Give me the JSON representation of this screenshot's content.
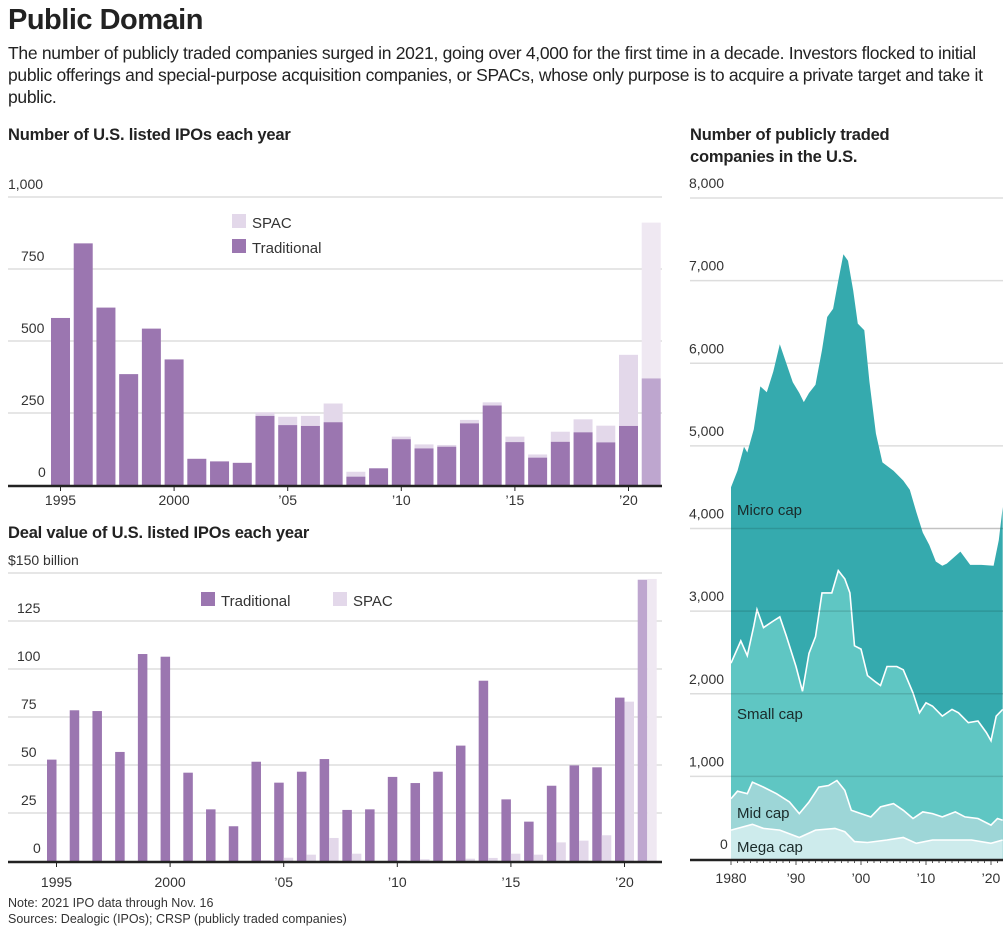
{
  "header": {
    "title": "Public Domain",
    "dek": "The number of publicly traded companies surged in 2021, going over 4,000 for the first time in a decade. Investors flocked to initial public offerings and special-purpose acquisition companies, or SPACs, whose only purpose is to acquire a private target and take it public."
  },
  "footer": {
    "note": "Note: 2021 IPO data through Nov. 16",
    "sources": "Sources: Dealogic (IPOs); CRSP (publicly traded companies)"
  },
  "colors": {
    "traditional": "#9b76b0",
    "traditional_2021": "#bea6cf",
    "spac": "#e3d8ea",
    "spac_2021": "#efe8f2",
    "micro": "#35aaae",
    "small": "#5fc6c3",
    "mid": "#9dd6d7",
    "mega": "#cdebec",
    "grid": "#dddddd",
    "axis": "#222222"
  },
  "chart_data": [
    {
      "type": "bar",
      "stacked": true,
      "title": "Number of U.S. listed IPOs each year",
      "xlabel": "",
      "ylabel": "",
      "ylim": [
        0,
        1000
      ],
      "yticks": [
        0,
        250,
        500,
        750,
        1000
      ],
      "ytick_labels": [
        "0",
        "250",
        "500",
        "750",
        "1,000"
      ],
      "xtick_years": [
        1995,
        2000,
        2005,
        2010,
        2015,
        2020
      ],
      "xtick_labels": [
        "1995",
        "2000",
        "’05",
        "’10",
        "’15",
        "’20"
      ],
      "grid": true,
      "legend": {
        "placement": "top-center",
        "entries": [
          "SPAC",
          "Traditional"
        ]
      },
      "categories": [
        1995,
        1996,
        1997,
        1998,
        1999,
        2000,
        2001,
        2002,
        2003,
        2004,
        2005,
        2006,
        2007,
        2008,
        2009,
        2010,
        2011,
        2012,
        2013,
        2014,
        2015,
        2016,
        2017,
        2018,
        2019,
        2020,
        2021
      ],
      "series": [
        {
          "name": "Traditional",
          "values": [
            580,
            839,
            616,
            385,
            543,
            436,
            91,
            82,
            77,
            240,
            208,
            205,
            218,
            29,
            58,
            159,
            127,
            133,
            214,
            276,
            149,
            95,
            150,
            183,
            148,
            205,
            370
          ]
        },
        {
          "name": "SPAC",
          "values": [
            0,
            0,
            0,
            0,
            0,
            0,
            0,
            0,
            0,
            12,
            29,
            35,
            65,
            17,
            0,
            9,
            14,
            6,
            12,
            11,
            19,
            11,
            35,
            45,
            58,
            247,
            541
          ]
        }
      ]
    },
    {
      "type": "bar",
      "stacked": false,
      "title": "Deal value of U.S. listed IPOs each year",
      "xlabel": "",
      "ylabel": "$ billion",
      "ylim": [
        0,
        150
      ],
      "yticks": [
        0,
        25,
        50,
        75,
        100,
        125,
        150
      ],
      "ytick_labels": [
        "0",
        "25",
        "50",
        "75",
        "100",
        "125",
        "$150 billion"
      ],
      "xtick_years": [
        1995,
        2000,
        2005,
        2010,
        2015,
        2020
      ],
      "xtick_labels": [
        "1995",
        "2000",
        "’05",
        "’10",
        "’15",
        "’20"
      ],
      "grid": true,
      "legend": {
        "placement": "top-center",
        "entries": [
          "Traditional",
          "SPAC"
        ]
      },
      "categories": [
        1995,
        1996,
        1997,
        1998,
        1999,
        2000,
        2001,
        2002,
        2003,
        2004,
        2005,
        2006,
        2007,
        2008,
        2009,
        2010,
        2011,
        2012,
        2013,
        2014,
        2015,
        2016,
        2017,
        2018,
        2019,
        2020,
        2021
      ],
      "series": [
        {
          "name": "Traditional",
          "values": [
            52.8,
            78.5,
            78.1,
            56.8,
            107.8,
            106.4,
            46.0,
            26.9,
            18.1,
            51.7,
            40.8,
            46.5,
            53.1,
            26.6,
            26.9,
            43.8,
            40.6,
            46.5,
            60.1,
            93.9,
            32.1,
            20.5,
            39.2,
            49.8,
            48.8,
            85.1,
            146.5
          ]
        },
        {
          "name": "SPAC",
          "values": [
            0,
            0,
            0,
            0,
            0,
            0,
            0,
            0,
            0,
            0.5,
            1.7,
            3.3,
            12.0,
            3.8,
            0,
            0.3,
            0.9,
            0,
            1.2,
            1.6,
            3.8,
            3.3,
            9.7,
            10.6,
            13.4,
            83.0,
            146.9
          ]
        }
      ]
    },
    {
      "type": "area",
      "stacked": true,
      "title": "Number of publicly traded companies in the U.S.",
      "xlabel": "",
      "ylabel": "",
      "ylim": [
        0,
        8000
      ],
      "xlim": [
        1980,
        2021.8
      ],
      "yticks": [
        0,
        1000,
        2000,
        3000,
        4000,
        5000,
        6000,
        7000,
        8000
      ],
      "ytick_labels": [
        "0",
        "1,000",
        "2,000",
        "3,000",
        "4,000",
        "5,000",
        "6,000",
        "7,000",
        "8,000"
      ],
      "xtick_years": [
        1980,
        1990,
        2000,
        2010,
        2020
      ],
      "xtick_labels": [
        "1980",
        "’90",
        "’00",
        "’10",
        "’20"
      ],
      "grid": true,
      "note": "series values are cumulative tops of each stacked band",
      "series": [
        {
          "name": "Micro cap",
          "points": [
            [
              1980,
              4500
            ],
            [
              1981,
              4700
            ],
            [
              1982,
              4990
            ],
            [
              1982.5,
              4920
            ],
            [
              1983.5,
              5200
            ],
            [
              1984.5,
              5720
            ],
            [
              1985.5,
              5650
            ],
            [
              1986.5,
              5900
            ],
            [
              1987.5,
              6230
            ],
            [
              1988.5,
              6000
            ],
            [
              1989.5,
              5770
            ],
            [
              1990.5,
              5640
            ],
            [
              1991.2,
              5530
            ],
            [
              1992,
              5640
            ],
            [
              1993,
              5740
            ],
            [
              1994,
              6160
            ],
            [
              1994.8,
              6560
            ],
            [
              1995.7,
              6660
            ],
            [
              1996.5,
              7000
            ],
            [
              1997.3,
              7320
            ],
            [
              1998,
              7240
            ],
            [
              1998.8,
              6880
            ],
            [
              1999.5,
              6480
            ],
            [
              2000.5,
              6400
            ],
            [
              2001.3,
              5780
            ],
            [
              2002.3,
              5150
            ],
            [
              2003.3,
              4800
            ],
            [
              2005,
              4700
            ],
            [
              2006.5,
              4580
            ],
            [
              2007.5,
              4470
            ],
            [
              2008.5,
              4200
            ],
            [
              2009.5,
              3950
            ],
            [
              2010.5,
              3800
            ],
            [
              2011.5,
              3600
            ],
            [
              2012.5,
              3550
            ],
            [
              2013.2,
              3575
            ],
            [
              2014.3,
              3650
            ],
            [
              2015.3,
              3720
            ],
            [
              2016.8,
              3560
            ],
            [
              2018.5,
              3560
            ],
            [
              2020.4,
              3550
            ],
            [
              2021.2,
              3860
            ],
            [
              2021.8,
              4260
            ]
          ]
        },
        {
          "name": "Small cap",
          "points": [
            [
              1980,
              2370
            ],
            [
              1981.5,
              2640
            ],
            [
              1982.5,
              2460
            ],
            [
              1983.5,
              2820
            ],
            [
              1984,
              3020
            ],
            [
              1985,
              2800
            ],
            [
              1986.5,
              2880
            ],
            [
              1987.5,
              2930
            ],
            [
              1988.5,
              2700
            ],
            [
              1990,
              2330
            ],
            [
              1991,
              2030
            ],
            [
              1992,
              2490
            ],
            [
              1993,
              2690
            ],
            [
              1994,
              3220
            ],
            [
              1995.5,
              3220
            ],
            [
              1996.5,
              3490
            ],
            [
              1997.5,
              3390
            ],
            [
              1998.3,
              3220
            ],
            [
              1999,
              2580
            ],
            [
              2000,
              2540
            ],
            [
              2001,
              2220
            ],
            [
              2002.3,
              2140
            ],
            [
              2003,
              2100
            ],
            [
              2004,
              2330
            ],
            [
              2005.5,
              2330
            ],
            [
              2006.5,
              2290
            ],
            [
              2008,
              2010
            ],
            [
              2009,
              1770
            ],
            [
              2010,
              1890
            ],
            [
              2011,
              1850
            ],
            [
              2012.5,
              1730
            ],
            [
              2014,
              1810
            ],
            [
              2015,
              1770
            ],
            [
              2016.5,
              1650
            ],
            [
              2018,
              1670
            ],
            [
              2019.3,
              1530
            ],
            [
              2020,
              1430
            ],
            [
              2020.8,
              1730
            ],
            [
              2021.8,
              1810
            ]
          ]
        },
        {
          "name": "Mid cap",
          "points": [
            [
              1980,
              730
            ],
            [
              1981,
              820
            ],
            [
              1982.5,
              790
            ],
            [
              1983.3,
              930
            ],
            [
              1985,
              870
            ],
            [
              1987,
              790
            ],
            [
              1989,
              690
            ],
            [
              1990.5,
              550
            ],
            [
              1992,
              690
            ],
            [
              1993.5,
              870
            ],
            [
              1995,
              890
            ],
            [
              1996.3,
              950
            ],
            [
              1997.5,
              830
            ],
            [
              1998.5,
              590
            ],
            [
              2000,
              550
            ],
            [
              2001.5,
              510
            ],
            [
              2003,
              630
            ],
            [
              2005,
              670
            ],
            [
              2006.5,
              590
            ],
            [
              2008,
              490
            ],
            [
              2009.5,
              570
            ],
            [
              2011,
              550
            ],
            [
              2012.5,
              510
            ],
            [
              2014.5,
              570
            ],
            [
              2016,
              510
            ],
            [
              2018,
              490
            ],
            [
              2020,
              410
            ],
            [
              2021,
              490
            ],
            [
              2021.8,
              470
            ]
          ]
        },
        {
          "name": "Mega cap",
          "points": [
            [
              1980,
              350
            ],
            [
              1981,
              370
            ],
            [
              1983.3,
              420
            ],
            [
              1985,
              370
            ],
            [
              1987.5,
              350
            ],
            [
              1990.5,
              260
            ],
            [
              1993,
              350
            ],
            [
              1996,
              370
            ],
            [
              1997.5,
              330
            ],
            [
              1999,
              210
            ],
            [
              2001,
              200
            ],
            [
              2004,
              230
            ],
            [
              2006.5,
              260
            ],
            [
              2008.5,
              190
            ],
            [
              2011,
              230
            ],
            [
              2014,
              230
            ],
            [
              2017,
              230
            ],
            [
              2020,
              190
            ],
            [
              2021.8,
              230
            ]
          ]
        }
      ],
      "labels": [
        "Micro cap",
        "Small cap",
        "Mid cap",
        "Mega cap"
      ]
    }
  ]
}
